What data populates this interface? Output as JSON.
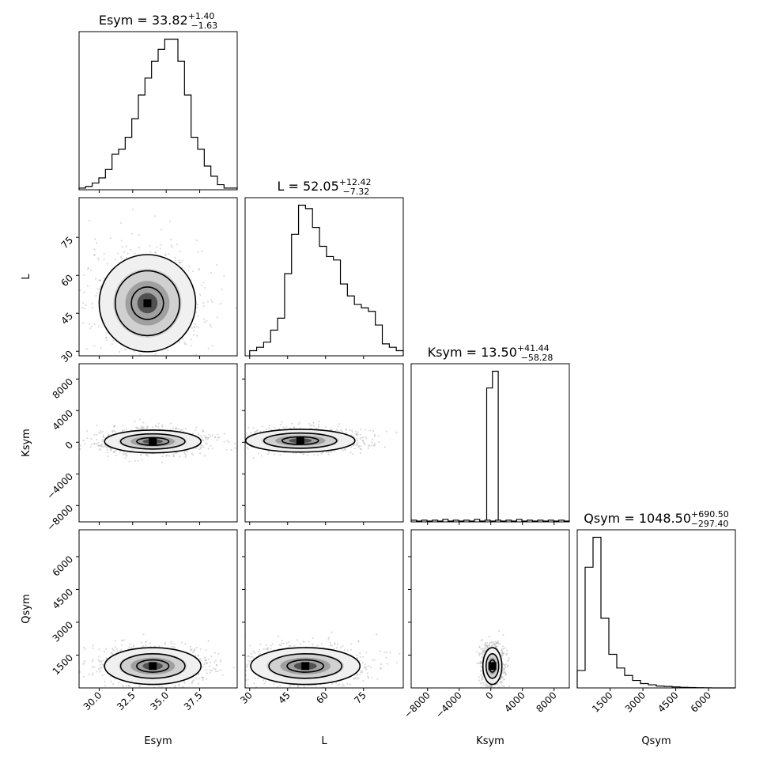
{
  "chart_data": {
    "type": "corner",
    "parameters": [
      "Esym",
      "L",
      "Ksym",
      "Qsym"
    ],
    "axes": {
      "Esym": {
        "range": [
          28.5,
          40.3
        ],
        "ticks": [
          30.0,
          32.5,
          35.0,
          37.5
        ],
        "tick_labels": [
          "30.0",
          "32.5",
          "35.0",
          "37.5"
        ]
      },
      "L": {
        "range": [
          28.2,
          90.7
        ],
        "ticks": [
          30,
          45,
          60,
          75
        ],
        "tick_labels": [
          "30",
          "45",
          "60",
          "75"
        ]
      },
      "Ksym": {
        "range": [
          -10070,
          9930
        ],
        "ticks": [
          -8000,
          -4000,
          0,
          4000,
          8000
        ],
        "tick_labels": [
          "−8000",
          "−4000",
          "0",
          "4000",
          "8000"
        ]
      },
      "Qsym": {
        "range": [
          0,
          7225
        ],
        "ticks": [
          1500,
          3000,
          4500,
          6000
        ],
        "tick_labels": [
          "1500",
          "3000",
          "4500",
          "6000"
        ]
      }
    },
    "titles": [
      {
        "param": "Esym",
        "base": "Esym = 33.82",
        "plus": "+1.40",
        "minus": "−1.63"
      },
      {
        "param": "L",
        "base": "L = 52.05",
        "plus": "+12.42",
        "minus": "−7.32"
      },
      {
        "param": "Ksym",
        "base": "Ksym = 13.50",
        "plus": "+41.44",
        "minus": "−58.28"
      },
      {
        "param": "Qsym",
        "base": "Qsym = 1048.50",
        "plus": "+690.50",
        "minus": "−297.40"
      }
    ],
    "histograms": {
      "Esym": {
        "edges": [
          28.5,
          40.3
        ],
        "counts": [
          1,
          2,
          4,
          7,
          12,
          21,
          24,
          31,
          42,
          56,
          66,
          76,
          83,
          89,
          89,
          76,
          56,
          31,
          24,
          14,
          8,
          3,
          1,
          1
        ]
      },
      "L": {
        "edges": [
          30.0,
          90.7
        ],
        "counts": [
          3,
          5,
          8,
          15,
          22,
          48,
          71,
          88,
          86,
          75,
          64,
          58,
          56,
          42,
          35,
          30,
          28,
          26,
          18,
          7,
          5,
          3
        ]
      },
      "Ksym": {
        "edges": [
          -10070,
          9930
        ],
        "counts": [
          1,
          0.5,
          1,
          0.5,
          1,
          0.5,
          1.5,
          0.5,
          1,
          0.5,
          1,
          0.5,
          1.5,
          0.5,
          1,
          0.5,
          1,
          0.5,
          1,
          0.5,
          1.5,
          0.5,
          1,
          0.5,
          1,
          0.5,
          1,
          0.5,
          1,
          0.5
        ]
      },
      "Ksym_peak": {
        "edges": [
          -520,
          940
        ],
        "counts": [
          80,
          90
        ]
      },
      "Qsym": {
        "edges": [
          0,
          7225
        ],
        "counts": [
          14,
          97,
          121,
          56,
          27,
          16,
          10,
          6,
          3.5,
          2.5,
          1.5,
          1.2,
          0.8,
          0.5,
          0.3,
          0.2,
          0.1,
          0,
          0,
          0
        ]
      }
    },
    "pairs": [
      {
        "x": "Esym",
        "y": "L",
        "center": [
          33.6,
          49
        ],
        "spread": [
          1.5,
          8
        ]
      },
      {
        "x": "Esym",
        "y": "Ksym",
        "center": [
          34.0,
          100
        ],
        "spread": [
          1.5,
          600
        ]
      },
      {
        "x": "L",
        "y": "Ksym",
        "center": [
          50,
          200
        ],
        "spread": [
          9,
          600
        ]
      },
      {
        "x": "Esym",
        "y": "Qsym",
        "center": [
          34.0,
          1000
        ],
        "spread": [
          1.5,
          350
        ]
      },
      {
        "x": "L",
        "y": "Qsym",
        "center": [
          52,
          1000
        ],
        "spread": [
          9,
          350
        ]
      },
      {
        "x": "Ksym",
        "y": "Qsym",
        "center": [
          200,
          1000
        ],
        "spread": [
          500,
          350
        ]
      }
    ]
  }
}
